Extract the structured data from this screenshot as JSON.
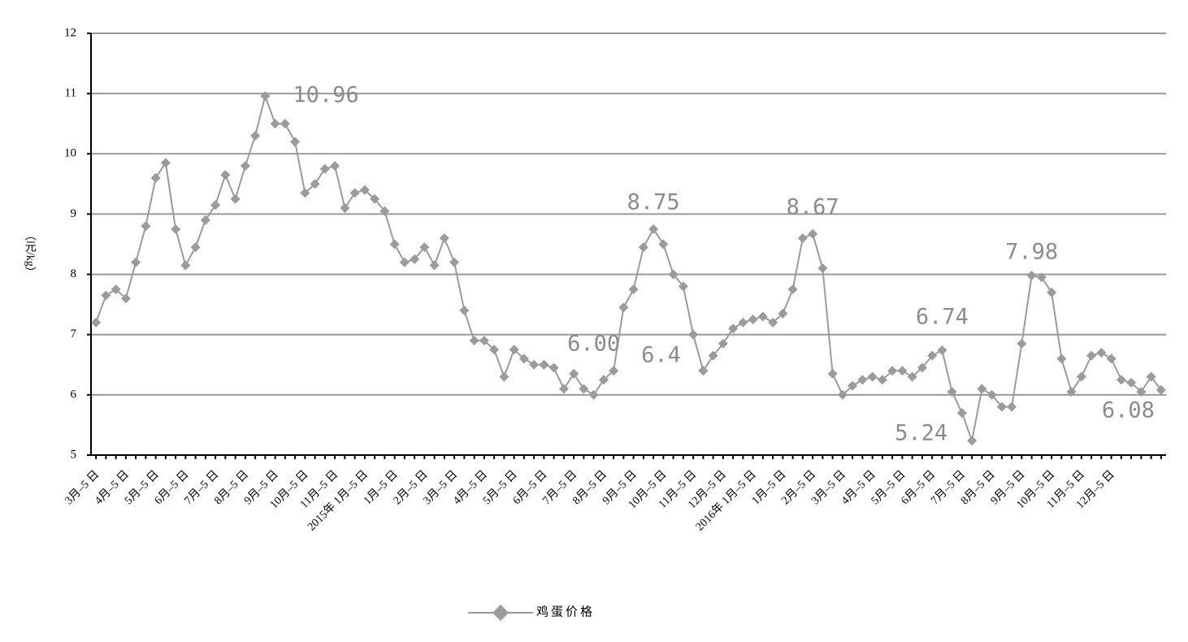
{
  "chart_data": {
    "type": "line",
    "y_label": "（元/kg）",
    "categories": [
      "3月–5 日",
      null,
      null,
      "4月–5 日",
      null,
      null,
      "5月–5 日",
      null,
      null,
      "6月–5 日",
      null,
      null,
      "7月–5 日",
      null,
      null,
      "8月–5 日",
      null,
      null,
      "9月–5 日",
      null,
      null,
      "10月–5 日",
      null,
      null,
      "11月–5 日",
      null,
      null,
      "2015年 1月–5 日",
      null,
      null,
      "1月–5 日",
      null,
      null,
      "2月–5 日",
      null,
      null,
      "3月–5 日",
      null,
      null,
      "4月–5 日",
      null,
      null,
      "5月–5 日",
      null,
      null,
      "6月–5 日",
      null,
      null,
      "7月–5 日",
      null,
      null,
      "8月–5 日",
      null,
      null,
      "9月–5 日",
      null,
      null,
      "10月–5 日",
      null,
      null,
      "11月–5 日",
      null,
      null,
      "12月–5 日",
      null,
      null,
      "2016年 1月–5 日",
      null,
      null,
      "1月–5 日",
      null,
      null,
      "2月–5 日",
      null,
      null,
      "3月–5 日",
      null,
      null,
      "4月–5 日",
      null,
      null,
      "5月–5 日",
      null,
      null,
      "6月–5 日",
      null,
      null,
      "7月–5 日",
      null,
      null,
      "8月–5 日",
      null,
      null,
      "9月–5 日",
      null,
      null,
      "10月–5 日",
      null,
      null,
      "11月–5 日",
      null,
      null,
      "12月–5 日",
      null,
      null,
      null,
      null,
      null
    ],
    "series": [
      {
        "name": "鸡蛋价格",
        "color": "#9b9b9b",
        "values": [
          7.2,
          7.65,
          7.75,
          7.6,
          8.2,
          8.8,
          9.6,
          9.85,
          8.75,
          8.15,
          8.45,
          8.9,
          9.15,
          9.65,
          9.25,
          9.8,
          10.3,
          10.96,
          10.5,
          10.5,
          10.2,
          9.35,
          9.5,
          9.75,
          9.8,
          9.1,
          9.35,
          9.4,
          9.25,
          9.05,
          8.5,
          8.2,
          8.25,
          8.45,
          8.15,
          8.6,
          8.2,
          7.4,
          6.9,
          6.9,
          6.75,
          6.3,
          6.75,
          6.6,
          6.5,
          6.5,
          6.45,
          6.1,
          6.35,
          6.1,
          6.0,
          6.25,
          6.4,
          7.45,
          7.75,
          8.45,
          8.75,
          8.5,
          8.0,
          7.8,
          7.0,
          6.4,
          6.65,
          6.85,
          7.1,
          7.2,
          7.25,
          7.3,
          7.2,
          7.35,
          7.75,
          8.6,
          8.67,
          8.1,
          6.35,
          6.0,
          6.15,
          6.25,
          6.3,
          6.25,
          6.4,
          6.4,
          6.3,
          6.45,
          6.65,
          6.74,
          6.05,
          5.7,
          5.24,
          6.1,
          6.0,
          5.8,
          5.8,
          6.85,
          7.98,
          7.95,
          7.7,
          6.6,
          6.05,
          6.3,
          6.65,
          6.7,
          6.6,
          6.25,
          6.2,
          6.05,
          6.3,
          6.08
        ],
        "value_labels": [
          null,
          null,
          null,
          null,
          null,
          null,
          null,
          null,
          null,
          null,
          null,
          null,
          null,
          null,
          null,
          null,
          null,
          "10.96",
          null,
          null,
          null,
          null,
          null,
          null,
          null,
          null,
          null,
          null,
          null,
          null,
          null,
          null,
          null,
          null,
          null,
          null,
          null,
          null,
          null,
          null,
          null,
          null,
          null,
          null,
          null,
          null,
          null,
          null,
          null,
          null,
          "6.00",
          null,
          "6.4",
          null,
          null,
          null,
          "8.75",
          null,
          null,
          null,
          null,
          null,
          null,
          null,
          null,
          null,
          null,
          null,
          null,
          null,
          null,
          null,
          "8.67",
          null,
          null,
          null,
          null,
          null,
          null,
          null,
          null,
          null,
          null,
          null,
          null,
          "6.74",
          null,
          null,
          "5.24",
          null,
          null,
          null,
          null,
          null,
          "7.98",
          null,
          null,
          null,
          null,
          null,
          null,
          null,
          null,
          null,
          null,
          null,
          null,
          "6.08"
        ]
      }
    ],
    "ylim": [
      5,
      12
    ],
    "yticks": [
      5,
      6,
      7,
      8,
      9,
      10,
      11,
      12
    ],
    "grid": true
  }
}
